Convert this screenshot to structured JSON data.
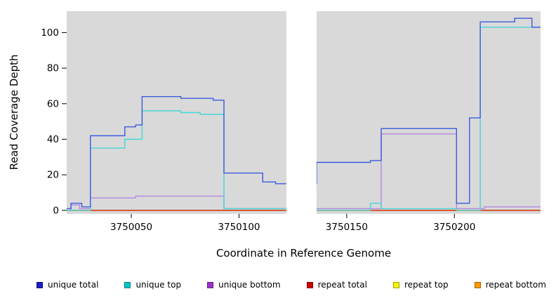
{
  "chart_data": {
    "type": "line",
    "step": true,
    "title": "",
    "xlabel": "Coordinate in Reference Genome",
    "ylabel": "Read Coverage Depth",
    "xlim": [
      3750020,
      3750240
    ],
    "ylim": [
      0,
      112
    ],
    "ylim_render": [
      -2,
      112
    ],
    "x_ticks": [
      3750050,
      3750100,
      3750150,
      3750200
    ],
    "y_ticks": [
      0,
      20,
      40,
      60,
      80,
      100
    ],
    "grid": false,
    "legend_position": "bottom",
    "panel_color": "#d9d9d9",
    "background_color": "#ffffff",
    "gap_region": [
      3750122,
      3750136
    ],
    "series": [
      {
        "id": "unique-total",
        "name": "unique total",
        "legend_color": "#1a1acc",
        "line_color": "#3b5bdc",
        "points": [
          [
            3750020,
            1
          ],
          [
            3750022,
            4
          ],
          [
            3750027,
            2
          ],
          [
            3750031,
            42
          ],
          [
            3750047,
            47
          ],
          [
            3750052,
            48
          ],
          [
            3750055,
            64
          ],
          [
            3750073,
            63
          ],
          [
            3750088,
            62
          ],
          [
            3750093,
            21
          ],
          [
            3750111,
            16
          ],
          [
            3750117,
            15
          ],
          [
            3750136,
            27
          ],
          [
            3750161,
            28
          ],
          [
            3750166,
            46
          ],
          [
            3750201,
            4
          ],
          [
            3750207,
            52
          ],
          [
            3750212,
            106
          ],
          [
            3750228,
            108
          ],
          [
            3750236,
            103
          ]
        ]
      },
      {
        "id": "unique-top",
        "name": "unique top",
        "legend_color": "#00c8c8",
        "line_color": "#45d6d6",
        "points": [
          [
            3750020,
            0
          ],
          [
            3750031,
            35
          ],
          [
            3750047,
            40
          ],
          [
            3750055,
            56
          ],
          [
            3750073,
            55
          ],
          [
            3750082,
            54
          ],
          [
            3750093,
            1
          ],
          [
            3750136,
            0
          ],
          [
            3750161,
            4
          ],
          [
            3750166,
            1
          ],
          [
            3750201,
            0
          ],
          [
            3750212,
            103
          ]
        ]
      },
      {
        "id": "unique-bottom",
        "name": "unique bottom",
        "legend_color": "#9933cc",
        "line_color": "#b388e0",
        "points": [
          [
            3750020,
            0
          ],
          [
            3750022,
            3
          ],
          [
            3750026,
            1
          ],
          [
            3750031,
            7
          ],
          [
            3750052,
            8
          ],
          [
            3750093,
            1
          ],
          [
            3750136,
            1
          ],
          [
            3750166,
            43
          ],
          [
            3750201,
            1
          ],
          [
            3750214,
            2
          ]
        ]
      },
      {
        "id": "repeat-total",
        "name": "repeat total",
        "legend_color": "#cc0000",
        "line_color": "#cc2222",
        "points": [
          [
            3750020,
            0
          ]
        ]
      },
      {
        "id": "repeat-top",
        "name": "repeat top",
        "legend_color": "#f5f500",
        "line_color": "#f5f500",
        "points": [
          [
            3750020,
            0
          ]
        ]
      },
      {
        "id": "repeat-bottom",
        "name": "repeat bottom",
        "legend_color": "#ff9900",
        "line_color": "#ff9900",
        "points": [
          [
            3750020,
            0
          ]
        ]
      }
    ]
  }
}
